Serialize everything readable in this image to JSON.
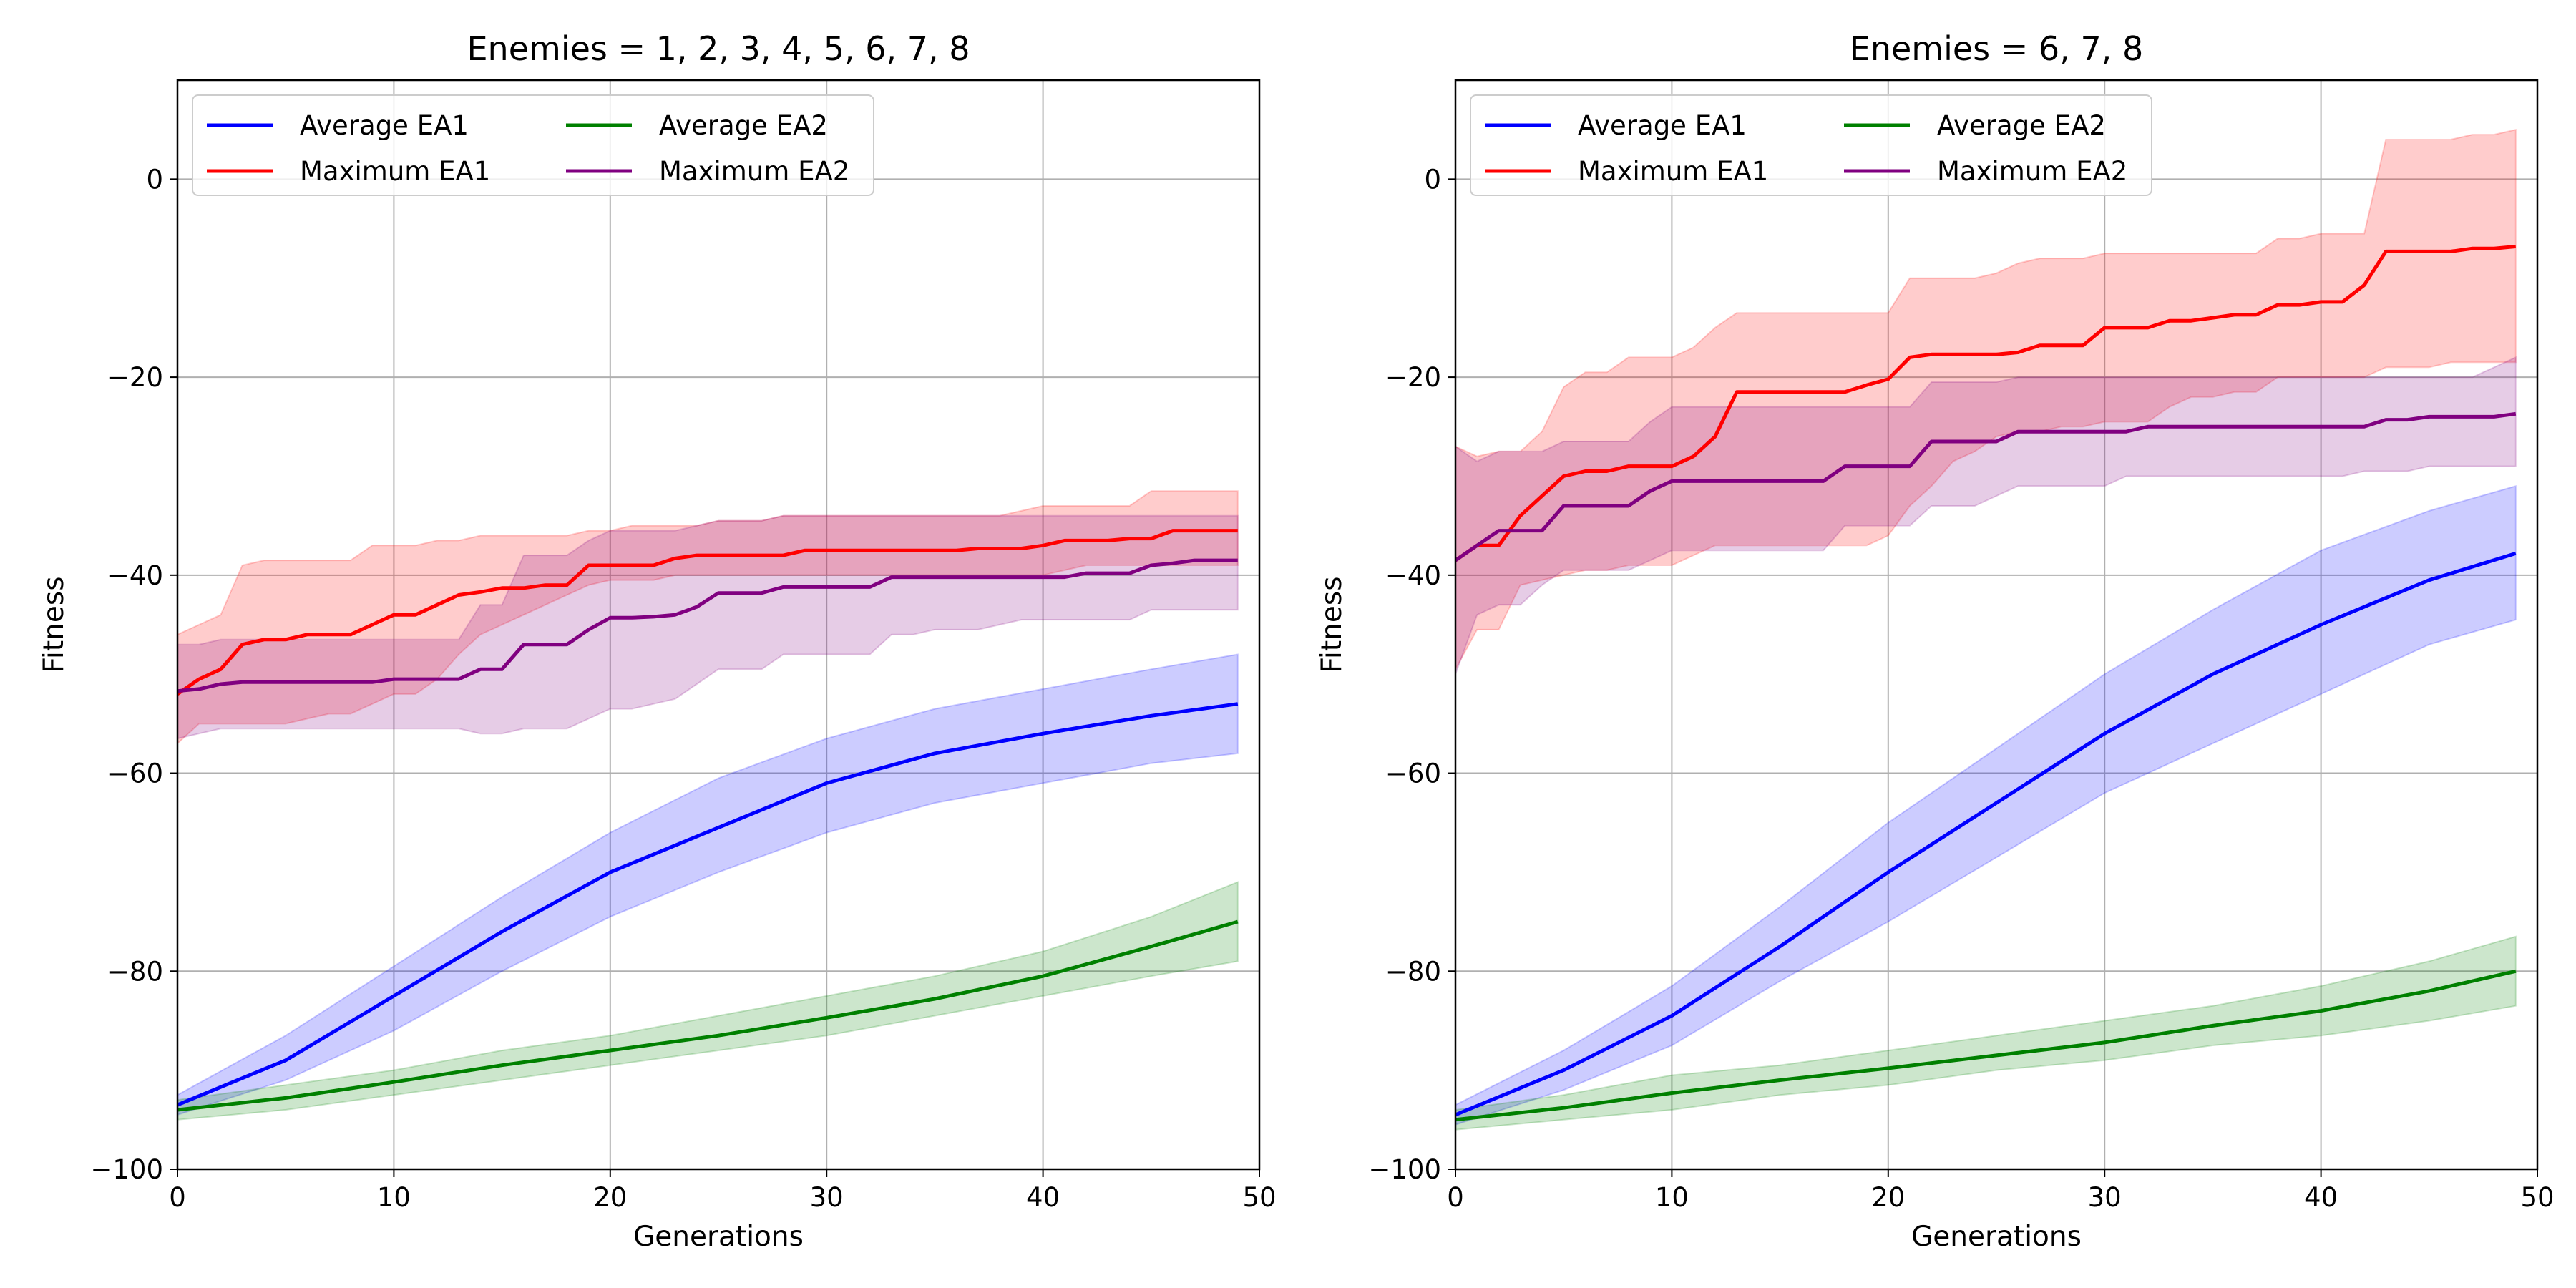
{
  "chart_data": [
    {
      "type": "line",
      "title": "Enemies = 1, 2, 3, 4, 5, 6, 7, 8",
      "xlabel": "Generations",
      "ylabel": "Fitness",
      "xlim": [
        0,
        50
      ],
      "ylim": [
        -100,
        10
      ],
      "xticks": [
        0,
        10,
        20,
        30,
        40,
        50
      ],
      "yticks": [
        -100,
        -80,
        -60,
        -40,
        -20,
        0
      ],
      "grid": true,
      "legend": "top-left",
      "series": [
        {
          "name": "Average EA1",
          "color": "#0000ff",
          "x": [
            0,
            5,
            10,
            15,
            20,
            25,
            30,
            35,
            40,
            45,
            49
          ],
          "values": [
            -93.5,
            -89,
            -82.5,
            -76,
            -70,
            -65.5,
            -61,
            -58,
            -56,
            -54.2,
            -53
          ],
          "lower": [
            -94.5,
            -91,
            -86,
            -80,
            -74.5,
            -70,
            -66,
            -63,
            -61,
            -59,
            -58
          ],
          "upper": [
            -92.5,
            -86.5,
            -79.5,
            -72.5,
            -66,
            -60.5,
            -56.5,
            -53.5,
            -51.5,
            -49.5,
            -48
          ]
        },
        {
          "name": "Maximum EA1",
          "color": "#ff0000",
          "x": [
            0,
            1,
            2,
            3,
            4,
            5,
            6,
            7,
            8,
            9,
            10,
            11,
            12,
            13,
            14,
            15,
            16,
            17,
            18,
            19,
            20,
            21,
            22,
            23,
            24,
            25,
            26,
            27,
            28,
            29,
            30,
            31,
            32,
            33,
            34,
            35,
            36,
            37,
            38,
            39,
            40,
            41,
            42,
            43,
            44,
            45,
            46,
            47,
            48,
            49
          ],
          "values": [
            -52,
            -50.5,
            -49.5,
            -47,
            -46.5,
            -46.5,
            -46,
            -46,
            -46,
            -45,
            -44,
            -44,
            -43,
            -42,
            -41.7,
            -41.3,
            -41.3,
            -41,
            -41,
            -39,
            -39,
            -39,
            -39,
            -38.3,
            -38,
            -38,
            -38,
            -38,
            -38,
            -37.5,
            -37.5,
            -37.5,
            -37.5,
            -37.5,
            -37.5,
            -37.5,
            -37.5,
            -37.3,
            -37.3,
            -37.3,
            -37,
            -36.5,
            -36.5,
            -36.5,
            -36.3,
            -36.3,
            -35.5,
            -35.5,
            -35.5,
            -35.5
          ],
          "lower": [
            -57,
            -55,
            -55,
            -55,
            -55,
            -55,
            -54.5,
            -54,
            -54,
            -53,
            -52,
            -52,
            -50.5,
            -48,
            -46,
            -45,
            -44,
            -43,
            -42,
            -41,
            -40.5,
            -40.5,
            -40.5,
            -40,
            -40,
            -40,
            -40,
            -40,
            -40,
            -40,
            -40,
            -40,
            -40,
            -40,
            -40,
            -40,
            -40,
            -40,
            -40,
            -40,
            -40,
            -39.5,
            -39,
            -39,
            -39,
            -39,
            -39,
            -39,
            -39,
            -39
          ],
          "upper": [
            -46,
            -45,
            -44,
            -39,
            -38.5,
            -38.5,
            -38.5,
            -38.5,
            -38.5,
            -37,
            -37,
            -37,
            -36.5,
            -36.5,
            -36,
            -36,
            -36,
            -36,
            -36,
            -35.5,
            -35.5,
            -35,
            -35,
            -35,
            -35,
            -34.5,
            -34.5,
            -34.5,
            -34,
            -34,
            -34,
            -34,
            -34,
            -34,
            -34,
            -34,
            -34,
            -34,
            -34,
            -33.5,
            -33,
            -33,
            -33,
            -33,
            -33,
            -31.5,
            -31.5,
            -31.5,
            -31.5,
            -31.5
          ]
        },
        {
          "name": "Average EA2",
          "color": "#008000",
          "x": [
            0,
            5,
            10,
            15,
            20,
            25,
            30,
            35,
            40,
            45,
            49
          ],
          "values": [
            -94,
            -92.8,
            -91.2,
            -89.5,
            -88,
            -86.5,
            -84.7,
            -82.8,
            -80.5,
            -77.5,
            -75
          ],
          "lower": [
            -95,
            -94,
            -92.5,
            -91,
            -89.5,
            -88,
            -86.5,
            -84.5,
            -82.5,
            -80.5,
            -79
          ],
          "upper": [
            -93,
            -91.5,
            -90,
            -88,
            -86.5,
            -84.5,
            -82.5,
            -80.5,
            -78,
            -74.5,
            -71
          ]
        },
        {
          "name": "Maximum EA2",
          "color": "#800080",
          "x": [
            0,
            1,
            2,
            3,
            4,
            5,
            6,
            7,
            8,
            9,
            10,
            11,
            12,
            13,
            14,
            15,
            16,
            17,
            18,
            19,
            20,
            21,
            22,
            23,
            24,
            25,
            26,
            27,
            28,
            29,
            30,
            31,
            32,
            33,
            34,
            35,
            36,
            37,
            38,
            39,
            40,
            41,
            42,
            43,
            44,
            45,
            46,
            47,
            48,
            49
          ],
          "values": [
            -51.7,
            -51.5,
            -51,
            -50.8,
            -50.8,
            -50.8,
            -50.8,
            -50.8,
            -50.8,
            -50.8,
            -50.5,
            -50.5,
            -50.5,
            -50.5,
            -49.5,
            -49.5,
            -47,
            -47,
            -47,
            -45.5,
            -44.3,
            -44.3,
            -44.2,
            -44,
            -43.2,
            -41.8,
            -41.8,
            -41.8,
            -41.2,
            -41.2,
            -41.2,
            -41.2,
            -41.2,
            -40.2,
            -40.2,
            -40.2,
            -40.2,
            -40.2,
            -40.2,
            -40.2,
            -40.2,
            -40.2,
            -39.8,
            -39.8,
            -39.8,
            -39,
            -38.8,
            -38.5,
            -38.5,
            -38.5
          ],
          "lower": [
            -56.5,
            -56,
            -55.5,
            -55.5,
            -55.5,
            -55.5,
            -55.5,
            -55.5,
            -55.5,
            -55.5,
            -55.5,
            -55.5,
            -55.5,
            -55.5,
            -56,
            -56,
            -55.5,
            -55.5,
            -55.5,
            -54.5,
            -53.5,
            -53.5,
            -53,
            -52.5,
            -51,
            -49.5,
            -49.5,
            -49.5,
            -48,
            -48,
            -48,
            -48,
            -48,
            -46,
            -46,
            -45.5,
            -45.5,
            -45.5,
            -45,
            -44.5,
            -44.5,
            -44.5,
            -44.5,
            -44.5,
            -44.5,
            -43.5,
            -43.5,
            -43.5,
            -43.5,
            -43.5
          ],
          "upper": [
            -47,
            -47,
            -46.5,
            -46.5,
            -46.5,
            -46.5,
            -46.5,
            -46.5,
            -46.5,
            -46.5,
            -46.5,
            -46.5,
            -46.5,
            -46.5,
            -43,
            -43,
            -38,
            -38,
            -38,
            -36.5,
            -35.5,
            -35.5,
            -35.5,
            -35.5,
            -35,
            -34.5,
            -34.5,
            -34.5,
            -34,
            -34,
            -34,
            -34,
            -34,
            -34,
            -34,
            -34,
            -34,
            -34,
            -34,
            -34,
            -34,
            -34,
            -34,
            -34,
            -34,
            -34,
            -34,
            -34,
            -34,
            -34
          ]
        }
      ]
    },
    {
      "type": "line",
      "title": "Enemies = 6, 7, 8",
      "xlabel": "Generations",
      "ylabel": "Fitness",
      "xlim": [
        0,
        50
      ],
      "ylim": [
        -100,
        10
      ],
      "xticks": [
        0,
        10,
        20,
        30,
        40,
        50
      ],
      "yticks": [
        -100,
        -80,
        -60,
        -40,
        -20,
        0
      ],
      "grid": true,
      "legend": "top-left",
      "series": [
        {
          "name": "Average EA1",
          "color": "#0000ff",
          "x": [
            0,
            5,
            10,
            15,
            20,
            25,
            30,
            35,
            40,
            45,
            49
          ],
          "values": [
            -94.5,
            -90,
            -84.5,
            -77.5,
            -70,
            -63,
            -56,
            -50,
            -45,
            -40.5,
            -37.8
          ],
          "lower": [
            -95.5,
            -92,
            -87.5,
            -81,
            -75,
            -68.5,
            -62,
            -57,
            -52,
            -47,
            -44.5
          ],
          "upper": [
            -93.5,
            -88,
            -81.5,
            -73.5,
            -65,
            -57.5,
            -50,
            -43.5,
            -37.5,
            -33.5,
            -31
          ]
        },
        {
          "name": "Maximum EA1",
          "color": "#ff0000",
          "x": [
            0,
            1,
            2,
            3,
            4,
            5,
            6,
            7,
            8,
            9,
            10,
            11,
            12,
            13,
            14,
            15,
            16,
            17,
            18,
            19,
            20,
            21,
            22,
            23,
            24,
            25,
            26,
            27,
            28,
            29,
            30,
            31,
            32,
            33,
            34,
            35,
            36,
            37,
            38,
            39,
            40,
            41,
            42,
            43,
            44,
            45,
            46,
            47,
            48,
            49
          ],
          "values": [
            -38.5,
            -37,
            -37,
            -34,
            -32,
            -30,
            -29.5,
            -29.5,
            -29,
            -29,
            -29,
            -28,
            -26,
            -21.5,
            -21.5,
            -21.5,
            -21.5,
            -21.5,
            -21.5,
            -20.8,
            -20.2,
            -18,
            -17.7,
            -17.7,
            -17.7,
            -17.7,
            -17.5,
            -16.8,
            -16.8,
            -16.8,
            -15,
            -15,
            -15,
            -14.3,
            -14.3,
            -14,
            -13.7,
            -13.7,
            -12.7,
            -12.7,
            -12.4,
            -12.4,
            -10.7,
            -7.3,
            -7.3,
            -7.3,
            -7.3,
            -7,
            -7,
            -6.8
          ],
          "lower": [
            -49.5,
            -45.5,
            -45.5,
            -41,
            -40.5,
            -40,
            -39.5,
            -39.5,
            -39,
            -39,
            -39,
            -38,
            -37,
            -37,
            -37,
            -37,
            -37,
            -37,
            -37,
            -37,
            -36,
            -33,
            -31,
            -28.5,
            -27.5,
            -26,
            -25.5,
            -25.5,
            -25,
            -25,
            -24.5,
            -24.5,
            -24.5,
            -23,
            -22,
            -22,
            -21.5,
            -21.5,
            -20,
            -20,
            -20,
            -20,
            -20,
            -19,
            -19,
            -19,
            -18.5,
            -18.5,
            -18.5,
            -18.5
          ],
          "upper": [
            -27,
            -28,
            -27.5,
            -27.5,
            -25.5,
            -21,
            -19.5,
            -19.5,
            -18,
            -18,
            -18,
            -17,
            -15,
            -13.5,
            -13.5,
            -13.5,
            -13.5,
            -13.5,
            -13.5,
            -13.5,
            -13.5,
            -10,
            -10,
            -10,
            -10,
            -9.5,
            -8.5,
            -8,
            -8,
            -8,
            -7.5,
            -7.5,
            -7.5,
            -7.5,
            -7.5,
            -7.5,
            -7.5,
            -7.5,
            -6,
            -6,
            -5.5,
            -5.5,
            -5.5,
            4,
            4,
            4,
            4,
            4.5,
            4.5,
            5
          ]
        },
        {
          "name": "Average EA2",
          "color": "#008000",
          "x": [
            0,
            5,
            10,
            15,
            20,
            25,
            30,
            35,
            40,
            45,
            49
          ],
          "values": [
            -95,
            -93.8,
            -92.3,
            -91,
            -89.8,
            -88.5,
            -87.2,
            -85.5,
            -84,
            -82,
            -80
          ],
          "lower": [
            -96,
            -95,
            -94,
            -92.5,
            -91.5,
            -90,
            -89,
            -87.5,
            -86.5,
            -85,
            -83.5
          ],
          "upper": [
            -94,
            -92.5,
            -90.5,
            -89.5,
            -88,
            -86.5,
            -85,
            -83.5,
            -81.5,
            -79,
            -76.5
          ]
        },
        {
          "name": "Maximum EA2",
          "color": "#800080",
          "x": [
            0,
            1,
            2,
            3,
            4,
            5,
            6,
            7,
            8,
            9,
            10,
            11,
            12,
            13,
            14,
            15,
            16,
            17,
            18,
            19,
            20,
            21,
            22,
            23,
            24,
            25,
            26,
            27,
            28,
            29,
            30,
            31,
            32,
            33,
            34,
            35,
            36,
            37,
            38,
            39,
            40,
            41,
            42,
            43,
            44,
            45,
            46,
            47,
            48,
            49
          ],
          "values": [
            -38.5,
            -37,
            -35.5,
            -35.5,
            -35.5,
            -33,
            -33,
            -33,
            -33,
            -31.5,
            -30.5,
            -30.5,
            -30.5,
            -30.5,
            -30.5,
            -30.5,
            -30.5,
            -30.5,
            -29,
            -29,
            -29,
            -29,
            -26.5,
            -26.5,
            -26.5,
            -26.5,
            -25.5,
            -25.5,
            -25.5,
            -25.5,
            -25.5,
            -25.5,
            -25,
            -25,
            -25,
            -25,
            -25,
            -25,
            -25,
            -25,
            -25,
            -25,
            -25,
            -24.3,
            -24.3,
            -24,
            -24,
            -24,
            -24,
            -23.7
          ],
          "lower": [
            -50,
            -44,
            -43,
            -43,
            -41,
            -39.5,
            -39.5,
            -39.5,
            -39.5,
            -38.5,
            -37.5,
            -37.5,
            -37.5,
            -37.5,
            -37.5,
            -37.5,
            -37.5,
            -37.5,
            -35,
            -35,
            -35,
            -35,
            -33,
            -33,
            -33,
            -32,
            -31,
            -31,
            -31,
            -31,
            -31,
            -30,
            -30,
            -30,
            -30,
            -30,
            -30,
            -30,
            -30,
            -30,
            -30,
            -30,
            -29.5,
            -29.5,
            -29.5,
            -29,
            -29,
            -29,
            -29,
            -29
          ],
          "upper": [
            -27,
            -28.5,
            -27.5,
            -27.5,
            -27.5,
            -26.5,
            -26.5,
            -26.5,
            -26.5,
            -24.5,
            -23,
            -23,
            -23,
            -23,
            -23,
            -23,
            -23,
            -23,
            -23,
            -23,
            -23,
            -23,
            -20.5,
            -20.5,
            -20.5,
            -20.5,
            -20,
            -20,
            -20,
            -20,
            -20,
            -20,
            -20,
            -20,
            -20,
            -20,
            -20,
            -20,
            -20,
            -20,
            -20,
            -20,
            -20,
            -20,
            -20,
            -20,
            -20,
            -20,
            -19,
            -18
          ]
        }
      ]
    }
  ]
}
